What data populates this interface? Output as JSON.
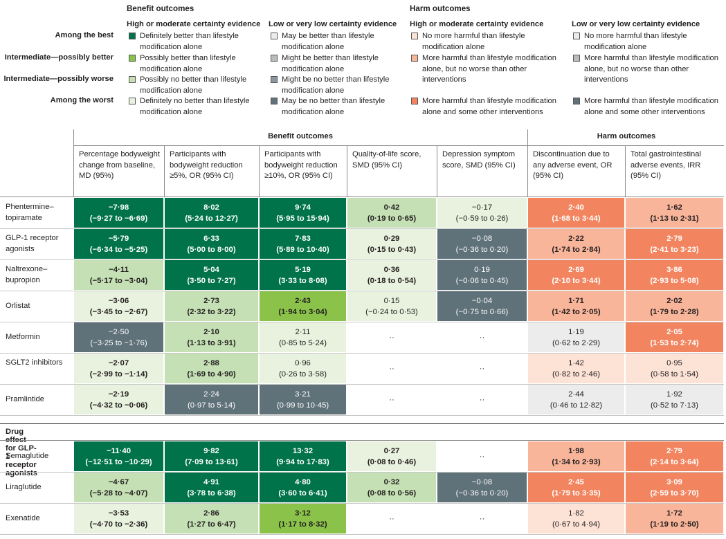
{
  "legend": {
    "benefit_title": "Benefit outcomes",
    "harm_title": "Harm outcomes",
    "subheads": [
      "High or moderate certainty evidence",
      "Low or very low certainty evidence",
      "High or moderate certainty evidence",
      "Low or very low certainty evidence"
    ],
    "row_labels": [
      "Among the best",
      "Intermediate—possibly better",
      "Intermediate—possibly worse",
      "Among the worst"
    ],
    "benefit_high": [
      {
        "text": "Definitely better than lifestyle modification alone",
        "color": "#00734b"
      },
      {
        "text": "Possibly better than lifestyle modification alone",
        "color": "#8bc34a"
      },
      {
        "text": "Possibly no better than lifestyle modification alone",
        "color": "#c5e0b4"
      },
      {
        "text": "Definitely no better than lifestyle modification alone",
        "color": "#e8f2de"
      }
    ],
    "benefit_low": [
      {
        "text": "May be better than lifestyle modification alone",
        "color": "#ececec"
      },
      {
        "text": "Might be better than lifestyle modification alone",
        "color": "#b8bcbf"
      },
      {
        "text": "Might be no better than lifestyle modification alone",
        "color": "#8d979d"
      },
      {
        "text": "May be no better than lifestyle modification alone",
        "color": "#5f7179"
      }
    ],
    "harm_high": [
      {
        "text": "No more harmful than lifestyle modification alone",
        "color": "#fde3d6"
      },
      {
        "text": "More harmful than lifestyle modification alone, but no worse than other interventions",
        "color": "#f9b59a"
      },
      {
        "text": "More harmful than lifestyle modification alone and some other interventions",
        "color": "#f28560"
      }
    ],
    "harm_low": [
      {
        "text": "No more harmful than lifestyle modification alone",
        "color": "#ececec"
      },
      {
        "text": "More harmful than lifestyle modification alone, but no worse than other interventions",
        "color": "#b8bcbf"
      },
      {
        "text": "More harmful than lifestyle modification alone and some other interventions",
        "color": "#5f7179"
      }
    ]
  },
  "table": {
    "benefit_band": "Benefit outcomes",
    "harm_band": "Harm outcomes",
    "columns": [
      "Percentage bodyweight change from baseline, MD (95%)",
      "Participants with bodyweight reduction ≥5%, OR (95% CI)",
      "Participants with bodyweight reduction ≥10%, OR (95% CI)",
      "Quality-of-life score, SMD (95% CI)",
      "Depression symptom score, SMD (95% CI)",
      "Discontinuation due to any adverse event, OR (95% CI)",
      "Total gastrointestinal adverse events, IRR (95% CI)"
    ],
    "section_title": "Drug effect for GLP-1 receptor agonists",
    "rows": [
      {
        "label": "Phentermine–topiramate",
        "cells": [
          {
            "v": "−7·98",
            "ci": "(−9·27 to −6·69)",
            "c": "#00734b",
            "t": "w",
            "b": 1
          },
          {
            "v": "8·02",
            "ci": "(5·24 to 12·27)",
            "c": "#00734b",
            "t": "w",
            "b": 1
          },
          {
            "v": "9·74",
            "ci": "(5·95 to 15·94)",
            "c": "#00734b",
            "t": "w",
            "b": 1
          },
          {
            "v": "0·42",
            "ci": "(0·19 to 0·65)",
            "c": "#c5e0b4",
            "t": "d",
            "b": 1
          },
          {
            "v": "−0·17",
            "ci": "(−0·59 to 0·26)",
            "c": "#e8f2de",
            "t": "d",
            "b": 0
          },
          {
            "v": "2·40",
            "ci": "(1·68 to 3·44)",
            "c": "#f28560",
            "t": "w",
            "b": 1
          },
          {
            "v": "1·62",
            "ci": "(1·13 to 2·31)",
            "c": "#f9b59a",
            "t": "d",
            "b": 1
          }
        ]
      },
      {
        "label": "GLP-1 receptor agonists",
        "cells": [
          {
            "v": "−5·79",
            "ci": "(−6·34 to −5·25)",
            "c": "#00734b",
            "t": "w",
            "b": 1
          },
          {
            "v": "6·33",
            "ci": "(5·00 to 8·00)",
            "c": "#00734b",
            "t": "w",
            "b": 1
          },
          {
            "v": "7·83",
            "ci": "(5·89 to 10·40)",
            "c": "#00734b",
            "t": "w",
            "b": 1
          },
          {
            "v": "0·29",
            "ci": "(0·15 to 0·43)",
            "c": "#e8f2de",
            "t": "d",
            "b": 1
          },
          {
            "v": "−0·08",
            "ci": "(−0·36 to 0·20)",
            "c": "#5f7179",
            "t": "w",
            "b": 0
          },
          {
            "v": "2·22",
            "ci": "(1·74 to 2·84)",
            "c": "#f9b59a",
            "t": "d",
            "b": 1
          },
          {
            "v": "2·79",
            "ci": "(2·41 to 3·23)",
            "c": "#f28560",
            "t": "w",
            "b": 1
          }
        ]
      },
      {
        "label": "Naltrexone–bupropion",
        "cells": [
          {
            "v": "−4·11",
            "ci": "(−5·17 to −3·04)",
            "c": "#c5e0b4",
            "t": "d",
            "b": 1
          },
          {
            "v": "5·04",
            "ci": "(3·50 to 7·27)",
            "c": "#00734b",
            "t": "w",
            "b": 1
          },
          {
            "v": "5·19",
            "ci": "(3·33 to 8·08)",
            "c": "#00734b",
            "t": "w",
            "b": 1
          },
          {
            "v": "0·36",
            "ci": "(0·18 to 0·54)",
            "c": "#e8f2de",
            "t": "d",
            "b": 1
          },
          {
            "v": "0·19",
            "ci": "(−0·06 to 0·45)",
            "c": "#5f7179",
            "t": "w",
            "b": 0
          },
          {
            "v": "2·69",
            "ci": "(2·10 to 3·44)",
            "c": "#f28560",
            "t": "w",
            "b": 1
          },
          {
            "v": "3·86",
            "ci": "(2·93 to 5·08)",
            "c": "#f28560",
            "t": "w",
            "b": 1
          }
        ]
      },
      {
        "label": "Orlistat",
        "cells": [
          {
            "v": "−3·06",
            "ci": "(−3·45 to −2·67)",
            "c": "#e8f2de",
            "t": "d",
            "b": 1
          },
          {
            "v": "2·73",
            "ci": "(2·32 to 3·22)",
            "c": "#c5e0b4",
            "t": "d",
            "b": 1
          },
          {
            "v": "2·43",
            "ci": "(1·94 to 3·04)",
            "c": "#8bc34a",
            "t": "d",
            "b": 1
          },
          {
            "v": "0·15",
            "ci": "(−0·24 to 0·53)",
            "c": "#e8f2de",
            "t": "d",
            "b": 0
          },
          {
            "v": "−0·04",
            "ci": "(−0·75 to 0·66)",
            "c": "#5f7179",
            "t": "w",
            "b": 0
          },
          {
            "v": "1·71",
            "ci": "(1·42 to 2·05)",
            "c": "#f9b59a",
            "t": "d",
            "b": 1
          },
          {
            "v": "2·02",
            "ci": "(1·79 to 2·28)",
            "c": "#f9b59a",
            "t": "d",
            "b": 1
          }
        ]
      },
      {
        "label": "Metformin",
        "cells": [
          {
            "v": "−2·50",
            "ci": "(−3·25 to −1·76)",
            "c": "#5f7179",
            "t": "w",
            "b": 0
          },
          {
            "v": "2·10",
            "ci": "(1·13 to 3·91)",
            "c": "#c5e0b4",
            "t": "d",
            "b": 1
          },
          {
            "v": "2·11",
            "ci": "(0·85 to 5·24)",
            "c": "#e8f2de",
            "t": "d",
            "b": 0
          },
          {
            "v": "··",
            "ci": "",
            "c": "#ffffff",
            "t": "d",
            "b": 0
          },
          {
            "v": "··",
            "ci": "",
            "c": "#ffffff",
            "t": "d",
            "b": 0
          },
          {
            "v": "1·19",
            "ci": "(0·62 to 2·29)",
            "c": "#ececec",
            "t": "d",
            "b": 0
          },
          {
            "v": "2·05",
            "ci": "(1·53 to 2·74)",
            "c": "#f28560",
            "t": "w",
            "b": 1
          }
        ]
      },
      {
        "label": "SGLT2 inhibitors",
        "cells": [
          {
            "v": "−2·07",
            "ci": "(−2·99 to −1·14)",
            "c": "#e8f2de",
            "t": "d",
            "b": 1
          },
          {
            "v": "2·88",
            "ci": "(1·69 to 4·90)",
            "c": "#c5e0b4",
            "t": "d",
            "b": 1
          },
          {
            "v": "0·96",
            "ci": "(0·26 to 3·58)",
            "c": "#e8f2de",
            "t": "d",
            "b": 0
          },
          {
            "v": "··",
            "ci": "",
            "c": "#ffffff",
            "t": "d",
            "b": 0
          },
          {
            "v": "··",
            "ci": "",
            "c": "#ffffff",
            "t": "d",
            "b": 0
          },
          {
            "v": "1·42",
            "ci": "(0·82 to 2·46)",
            "c": "#fde3d6",
            "t": "d",
            "b": 0
          },
          {
            "v": "0·95",
            "ci": "(0·58 to 1·54)",
            "c": "#fde3d6",
            "t": "d",
            "b": 0
          }
        ]
      },
      {
        "label": "Pramlintide",
        "cells": [
          {
            "v": "−2·19",
            "ci": "(−4·32 to −0·06)",
            "c": "#e8f2de",
            "t": "d",
            "b": 1
          },
          {
            "v": "2·24",
            "ci": "(0·97 to 5·14)",
            "c": "#5f7179",
            "t": "w",
            "b": 0
          },
          {
            "v": "3·21",
            "ci": "(0·99 to 10·45)",
            "c": "#5f7179",
            "t": "w",
            "b": 0
          },
          {
            "v": "··",
            "ci": "",
            "c": "#ffffff",
            "t": "d",
            "b": 0
          },
          {
            "v": "··",
            "ci": "",
            "c": "#ffffff",
            "t": "d",
            "b": 0
          },
          {
            "v": "2·44",
            "ci": "(0·46 to 12·82)",
            "c": "#ececec",
            "t": "d",
            "b": 0
          },
          {
            "v": "1·92",
            "ci": "(0·52 to 7·13)",
            "c": "#ececec",
            "t": "d",
            "b": 0
          }
        ]
      }
    ],
    "glp_rows": [
      {
        "label": "Semaglutide",
        "cells": [
          {
            "v": "−11·40",
            "ci": "(−12·51 to −10·29)",
            "c": "#00734b",
            "t": "w",
            "b": 1
          },
          {
            "v": "9·82",
            "ci": "(7·09 to 13·61)",
            "c": "#00734b",
            "t": "w",
            "b": 1
          },
          {
            "v": "13·32",
            "ci": "(9·94 to 17·83)",
            "c": "#00734b",
            "t": "w",
            "b": 1
          },
          {
            "v": "0·27",
            "ci": "(0·08 to 0·46)",
            "c": "#e8f2de",
            "t": "d",
            "b": 1
          },
          {
            "v": "··",
            "ci": "",
            "c": "#ffffff",
            "t": "d",
            "b": 0
          },
          {
            "v": "1·98",
            "ci": "(1·34 to 2·93)",
            "c": "#f9b59a",
            "t": "d",
            "b": 1
          },
          {
            "v": "2·79",
            "ci": "(2·14 to 3·64)",
            "c": "#f28560",
            "t": "w",
            "b": 1
          }
        ]
      },
      {
        "label": "Liraglutide",
        "cells": [
          {
            "v": "−4·67",
            "ci": "(−5·28 to −4·07)",
            "c": "#c5e0b4",
            "t": "d",
            "b": 1
          },
          {
            "v": "4·91",
            "ci": "(3·78 to 6·38)",
            "c": "#00734b",
            "t": "w",
            "b": 1
          },
          {
            "v": "4·80",
            "ci": "(3·60 to 6·41)",
            "c": "#00734b",
            "t": "w",
            "b": 1
          },
          {
            "v": "0·32",
            "ci": "(0·08 to 0·56)",
            "c": "#c5e0b4",
            "t": "d",
            "b": 1
          },
          {
            "v": "−0·08",
            "ci": "(−0·36 to 0·20)",
            "c": "#5f7179",
            "t": "w",
            "b": 0
          },
          {
            "v": "2·45",
            "ci": "(1·79 to 3·35)",
            "c": "#f28560",
            "t": "w",
            "b": 1
          },
          {
            "v": "3·09",
            "ci": "(2·59 to 3·70)",
            "c": "#f28560",
            "t": "w",
            "b": 1
          }
        ]
      },
      {
        "label": "Exenatide",
        "cells": [
          {
            "v": "−3·53",
            "ci": "(−4·70 to −2·36)",
            "c": "#e8f2de",
            "t": "d",
            "b": 1
          },
          {
            "v": "2·86",
            "ci": "(1·27 to 6·47)",
            "c": "#c5e0b4",
            "t": "d",
            "b": 1
          },
          {
            "v": "3·12",
            "ci": "(1·17 to 8·32)",
            "c": "#8bc34a",
            "t": "d",
            "b": 1
          },
          {
            "v": "··",
            "ci": "",
            "c": "#ffffff",
            "t": "d",
            "b": 0
          },
          {
            "v": "··",
            "ci": "",
            "c": "#ffffff",
            "t": "d",
            "b": 0
          },
          {
            "v": "1·82",
            "ci": "(0·67 to 4·94)",
            "c": "#fde3d6",
            "t": "d",
            "b": 0
          },
          {
            "v": "1·72",
            "ci": "(1·19 to 2·50)",
            "c": "#f9b59a",
            "t": "d",
            "b": 1
          }
        ]
      }
    ]
  }
}
